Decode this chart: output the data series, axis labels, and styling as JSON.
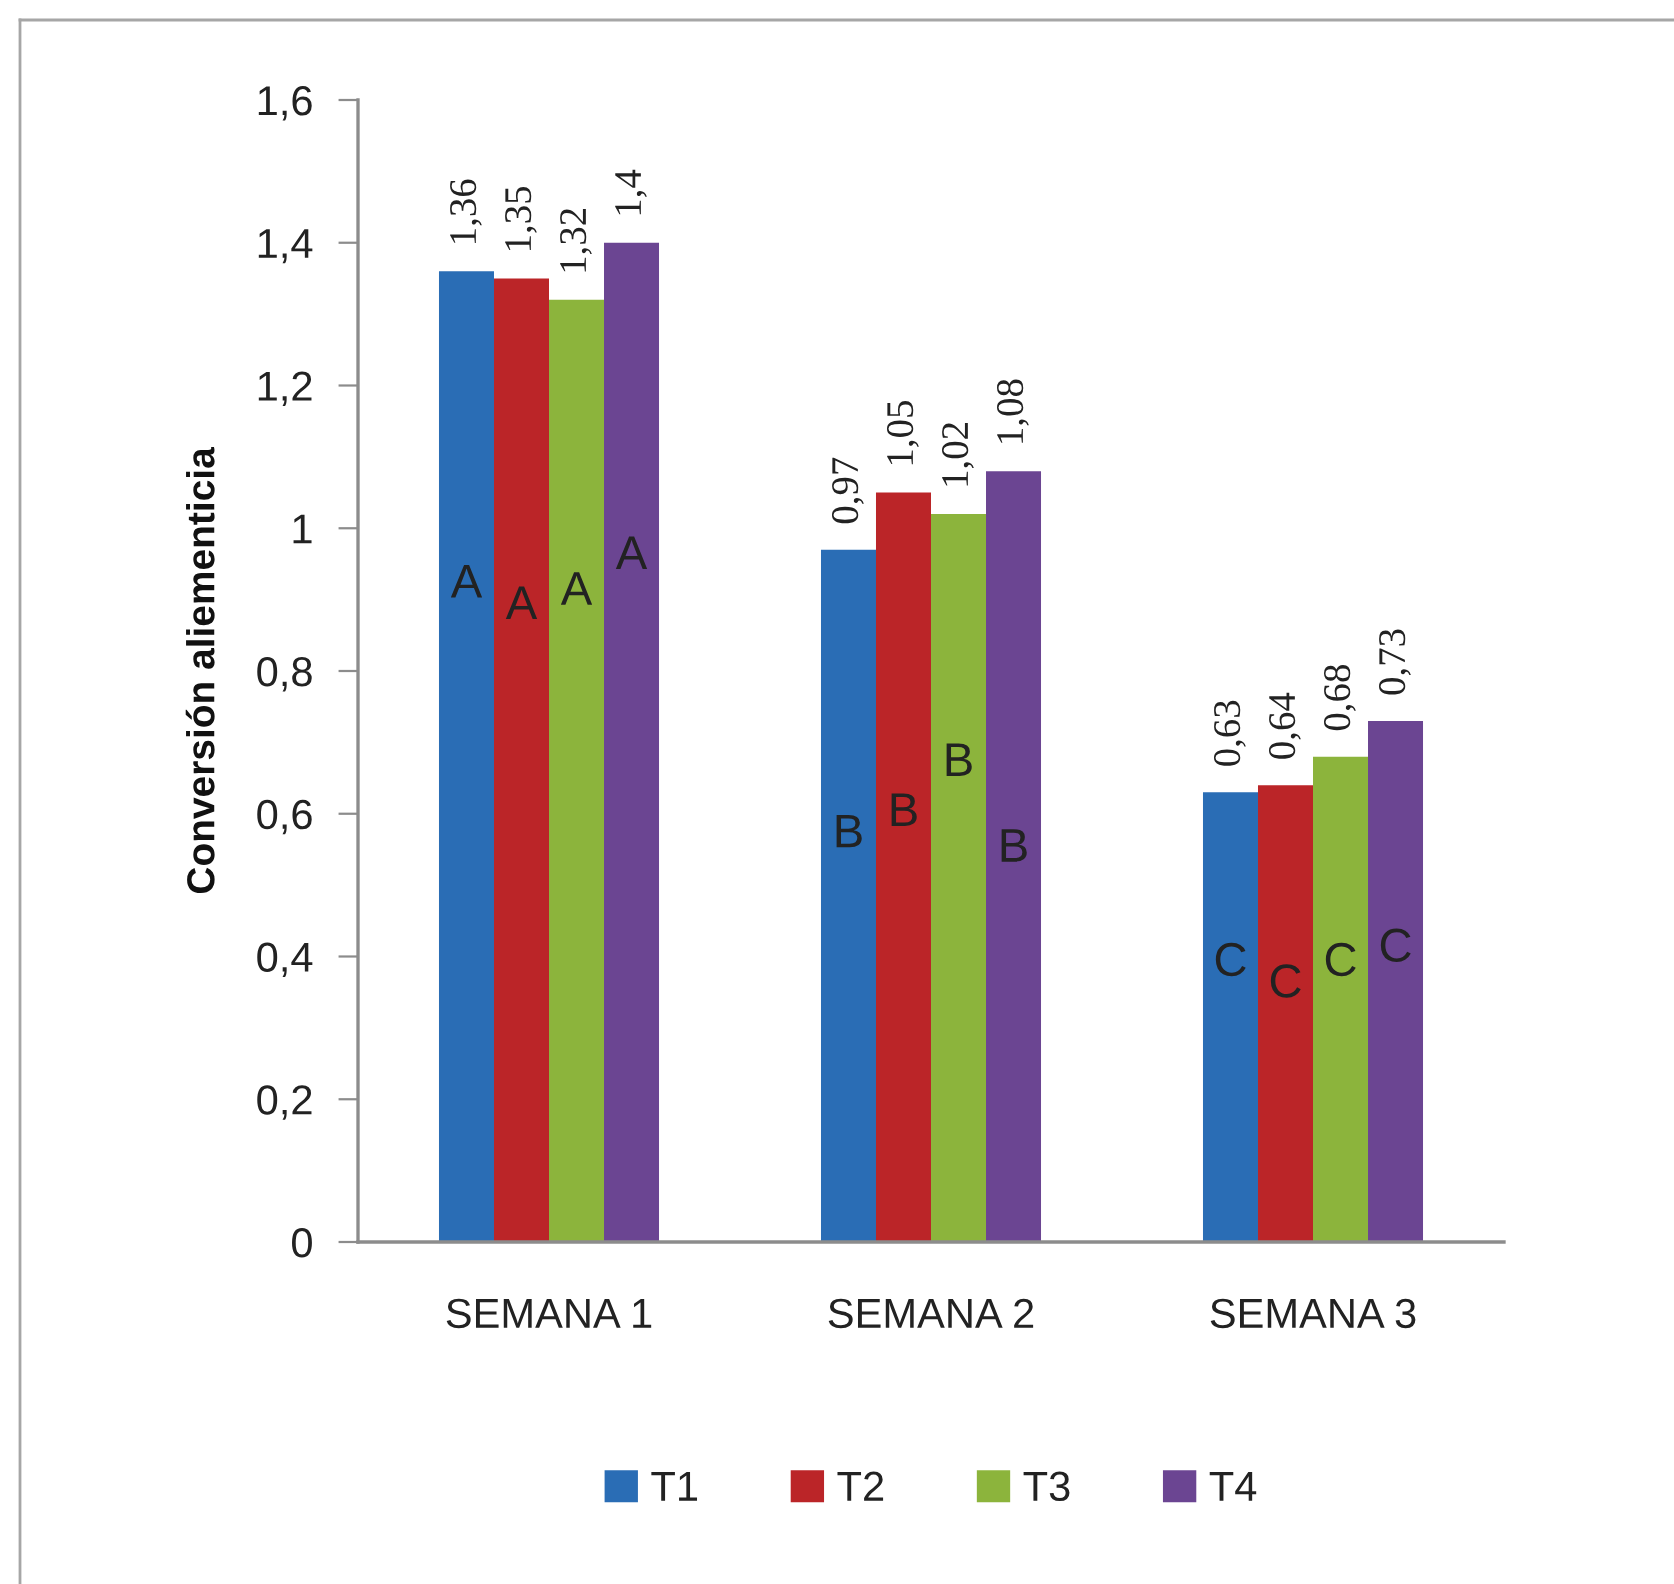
{
  "chart_data": {
    "type": "bar",
    "ylabel": "Conversión aliementicia",
    "categories": [
      "SEMANA 1",
      "SEMANA 2",
      "SEMANA 3"
    ],
    "series": [
      {
        "name": "T1",
        "color": "#2a6db5",
        "values": [
          1.36,
          0.97,
          0.63
        ],
        "value_labels": [
          "1,36",
          "0,97",
          "0,63"
        ]
      },
      {
        "name": "T2",
        "color": "#bb2528",
        "values": [
          1.35,
          1.05,
          0.64
        ],
        "value_labels": [
          "1,35",
          "1,05",
          "0,64"
        ]
      },
      {
        "name": "T3",
        "color": "#8cb43c",
        "values": [
          1.32,
          1.02,
          0.68
        ],
        "value_labels": [
          "1,32",
          "1,02",
          "0,68"
        ]
      },
      {
        "name": "T4",
        "color": "#6b4592",
        "values": [
          1.4,
          1.08,
          0.73
        ],
        "value_labels": [
          "1,4",
          "1,08",
          "0,73"
        ]
      }
    ],
    "ylim": [
      0,
      1.6
    ],
    "yticks": [
      0,
      {
        "value": 0.2,
        "label": "0,2"
      },
      {
        "value": 0.4,
        "label": "0,4"
      },
      {
        "value": 0.6,
        "label": "0,6"
      },
      {
        "value": 0.8,
        "label": "0,8"
      },
      1,
      {
        "value": 1.2,
        "label": "1,2"
      },
      {
        "value": 1.4,
        "label": "1,4"
      },
      {
        "value": 1.6,
        "label": "1,6"
      }
    ],
    "legend": "bottom",
    "grid": false,
    "annotations": [
      {
        "text": "A",
        "x": "SEMANA 1",
        "y": 0.92
      },
      {
        "text": "A",
        "x": "SEMANA 1",
        "y": 0.89
      },
      {
        "text": "A",
        "x": "SEMANA 1",
        "y": 0.91
      },
      {
        "text": "A",
        "x": "SEMANA 1",
        "y": 0.96
      },
      {
        "text": "B",
        "x": "SEMANA 2",
        "y": 0.57
      },
      {
        "text": "B",
        "x": "SEMANA 2",
        "y": 0.6
      },
      {
        "text": "B",
        "x": "SEMANA 2",
        "y": 0.67
      },
      {
        "text": "B",
        "x": "SEMANA 2",
        "y": 0.55
      },
      {
        "text": "C",
        "x": "SEMANA 3",
        "y": 0.39
      },
      {
        "text": "C",
        "x": "SEMANA 3",
        "y": 0.36
      },
      {
        "text": "C",
        "x": "SEMANA 3",
        "y": 0.39
      },
      {
        "text": "C",
        "x": "SEMANA 3",
        "y": 0.41
      }
    ]
  }
}
